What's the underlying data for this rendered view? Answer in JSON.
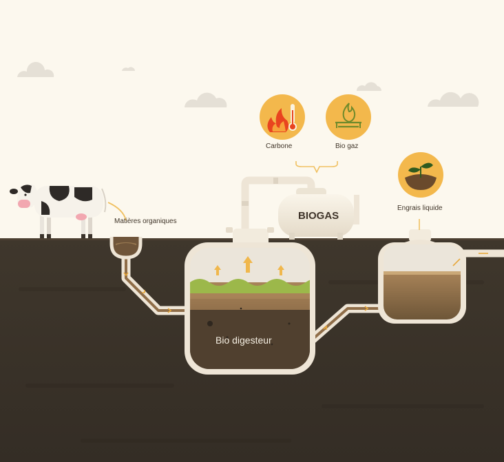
{
  "diagram": {
    "labels": {
      "organic_matter": "Matières organiques",
      "carbon": "Carbone",
      "biogas_fuel": "Bio gaz",
      "liquid_fertilizer": "Engrais liquide",
      "digester": "Bio digesteur",
      "gas_tank": "BIOGAS"
    },
    "icons": [
      "fire-thermometer-icon",
      "gas-flame-icon",
      "plant-sprout-icon"
    ],
    "colors": {
      "sky": "#fcf8ee",
      "ground": "#3b3329",
      "pipe": "#eee5d6",
      "icon_circle": "#f3b84c",
      "slurry": "#8d6a45",
      "green_layer": "#9cb84a",
      "flow_arrow": "#e7a73a"
    }
  }
}
